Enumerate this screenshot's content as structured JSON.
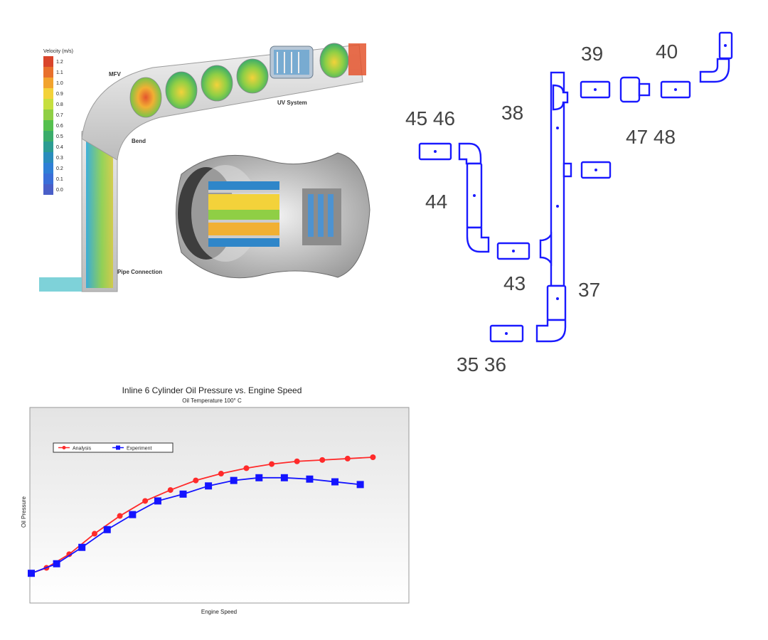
{
  "cfd_panel": {
    "legend_title": "Velocity (m/s)",
    "legend_values": [
      "1.2",
      "1.1",
      "1.0",
      "0.9",
      "0.8",
      "0.7",
      "0.6",
      "0.5",
      "0.4",
      "0.3",
      "0.2",
      "0.1",
      "0.0"
    ],
    "legend_colors": [
      "#d9452b",
      "#e8702c",
      "#f2a32e",
      "#f3d23a",
      "#c6df3f",
      "#8fcf45",
      "#55c04e",
      "#3aac6a",
      "#2c9c92",
      "#2a8cbc",
      "#2f7fd6",
      "#3a6ed8",
      "#4a5fc8"
    ],
    "labels": {
      "mfv": "MFV",
      "uv_system": "UV System",
      "bend": "Bend",
      "pipe_connection": "Pipe Connection"
    }
  },
  "pipe_network": {
    "labels": {
      "l39": "39",
      "l40": "40",
      "l38": "38",
      "l45_46": "45 46",
      "l47_48": "47 48",
      "l44": "44",
      "l43": "43",
      "l37": "37",
      "l35_36": "35 36"
    },
    "color": "#1a1aff"
  },
  "chart_data": {
    "type": "line",
    "title": "Inline 6 Cylinder  Oil Pressure vs. Engine Speed",
    "subtitle": "Oil Temperature 100° C",
    "xlabel": "Engine Speed",
    "ylabel": "Oil Pressure",
    "legend": [
      "Analysis",
      "Experiment"
    ],
    "legend_position": "top-left",
    "xlim": [
      0,
      14.5
    ],
    "ylim": [
      0,
      10
    ],
    "grid": false,
    "series": [
      {
        "name": "Analysis",
        "color": "#ff2a2a",
        "marker": "circle",
        "x": [
          0,
          0.6,
          1.5,
          2.5,
          3.5,
          4.5,
          5.5,
          6.5,
          7.5,
          8.5,
          9.5,
          10.5,
          11.5,
          12.5,
          13.5
        ],
        "values": [
          1.5,
          1.9,
          2.9,
          4.4,
          5.7,
          6.8,
          7.6,
          8.3,
          8.8,
          9.2,
          9.5,
          9.7,
          9.8,
          9.9,
          10.0
        ]
      },
      {
        "name": "Experiment",
        "color": "#1414ff",
        "marker": "square",
        "x": [
          0,
          1,
          2,
          3,
          4,
          5,
          6,
          7,
          8,
          9,
          10,
          11,
          12,
          13
        ],
        "values": [
          1.5,
          2.2,
          3.4,
          4.7,
          5.8,
          6.8,
          7.3,
          7.9,
          8.3,
          8.5,
          8.5,
          8.4,
          8.2,
          8.0
        ]
      }
    ]
  }
}
